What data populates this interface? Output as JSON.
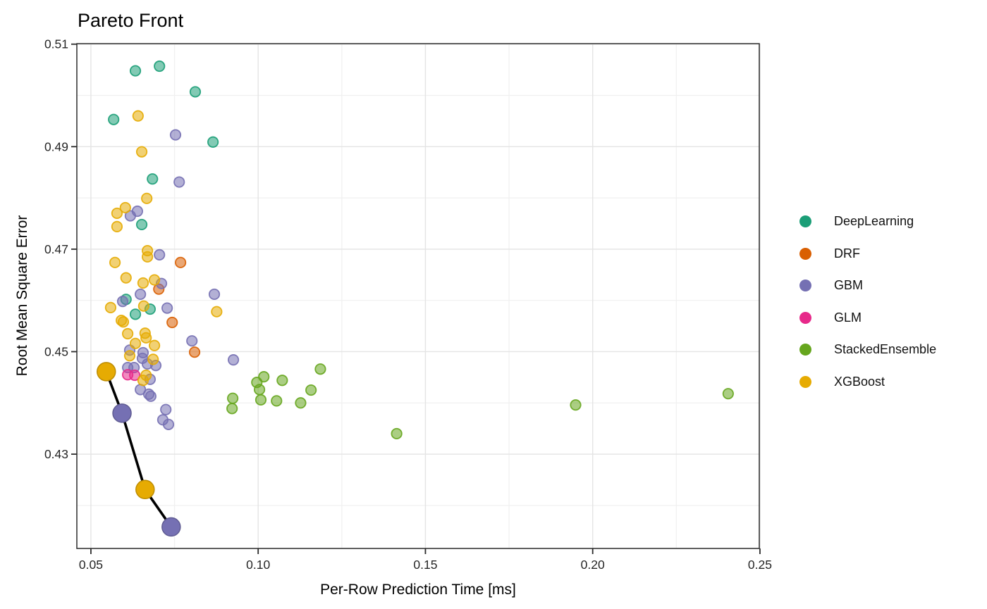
{
  "chart_data": {
    "type": "scatter",
    "title": "Pareto Front",
    "xlabel": "Per-Row Prediction Time [ms]",
    "ylabel": "Root Mean Square Error",
    "xlim": [
      0.0458,
      0.2498
    ],
    "ylim": [
      0.4116,
      0.5101
    ],
    "xticks": [
      0.05,
      0.1,
      0.15,
      0.2,
      0.25
    ],
    "xtick_labels": [
      "0.05",
      "0.10",
      "0.15",
      "0.20",
      "0.25"
    ],
    "yticks": [
      0.51,
      0.49,
      0.47,
      0.45,
      0.43
    ],
    "ytick_labels": [
      "0.51",
      "0.49",
      "0.47",
      "0.45",
      "0.43"
    ],
    "x_minor_ticks": [
      0.075,
      0.125,
      0.175,
      0.225
    ],
    "y_minor_ticks": [
      0.5,
      0.48,
      0.46,
      0.44,
      0.42
    ],
    "grid": true,
    "legend_position": "right-outside",
    "background": "#ffffff",
    "grid_major_color": "#e4e4e4",
    "grid_minor_color": "#f0f0f0",
    "panel_border_color": "#2b2b2b",
    "series": [
      {
        "name": "DeepLearning",
        "color": "#1b9e77",
        "points": [
          [
            0.0633,
            0.5048
          ],
          [
            0.0705,
            0.5057
          ],
          [
            0.0812,
            0.5007
          ],
          [
            0.0568,
            0.4953
          ],
          [
            0.0865,
            0.4909
          ],
          [
            0.0684,
            0.4837
          ],
          [
            0.0652,
            0.4748
          ],
          [
            0.0605,
            0.4602
          ],
          [
            0.0677,
            0.4583
          ],
          [
            0.0633,
            0.4573
          ]
        ]
      },
      {
        "name": "DRF",
        "color": "#d95f02",
        "points": [
          [
            0.0768,
            0.4674
          ],
          [
            0.0703,
            0.4622
          ],
          [
            0.0743,
            0.4557
          ],
          [
            0.081,
            0.4499
          ]
        ]
      },
      {
        "name": "GBM",
        "color": "#7570b3",
        "points": [
          [
            0.0753,
            0.4923
          ],
          [
            0.0764,
            0.4831
          ],
          [
            0.0639,
            0.4774
          ],
          [
            0.0618,
            0.4765
          ],
          [
            0.0705,
            0.4689
          ],
          [
            0.0711,
            0.4633
          ],
          [
            0.0648,
            0.4612
          ],
          [
            0.0869,
            0.4612
          ],
          [
            0.0595,
            0.4598
          ],
          [
            0.0728,
            0.4585
          ],
          [
            0.0802,
            0.4521
          ],
          [
            0.0616,
            0.4503
          ],
          [
            0.0656,
            0.4498
          ],
          [
            0.0654,
            0.4487
          ],
          [
            0.0669,
            0.4476
          ],
          [
            0.0694,
            0.4473
          ],
          [
            0.061,
            0.4469
          ],
          [
            0.0629,
            0.4469
          ],
          [
            0.0926,
            0.4484
          ],
          [
            0.0677,
            0.4446
          ],
          [
            0.0648,
            0.4426
          ],
          [
            0.0673,
            0.4417
          ],
          [
            0.0679,
            0.4413
          ],
          [
            0.0724,
            0.4387
          ],
          [
            0.0715,
            0.4367
          ],
          [
            0.0732,
            0.4358
          ]
        ]
      },
      {
        "name": "GLM",
        "color": "#e7298a",
        "points": [
          [
            0.061,
            0.4455
          ],
          [
            0.0631,
            0.4454
          ]
        ]
      },
      {
        "name": "StackedEnsemble",
        "color": "#66a61e",
        "points": [
          [
            0.1186,
            0.4466
          ],
          [
            0.1017,
            0.4451
          ],
          [
            0.1072,
            0.4444
          ],
          [
            0.0996,
            0.444
          ],
          [
            0.1004,
            0.4426
          ],
          [
            0.1158,
            0.4425
          ],
          [
            0.0924,
            0.4409
          ],
          [
            0.1008,
            0.4406
          ],
          [
            0.1055,
            0.4404
          ],
          [
            0.1127,
            0.44
          ],
          [
            0.0922,
            0.4389
          ],
          [
            0.1414,
            0.434
          ],
          [
            0.1949,
            0.4396
          ],
          [
            0.2405,
            0.4418
          ]
        ]
      },
      {
        "name": "XGBoost",
        "color": "#e6ab02",
        "points": [
          [
            0.0641,
            0.496
          ],
          [
            0.0652,
            0.489
          ],
          [
            0.0667,
            0.4799
          ],
          [
            0.0603,
            0.4781
          ],
          [
            0.0578,
            0.477
          ],
          [
            0.0578,
            0.4744
          ],
          [
            0.0669,
            0.4697
          ],
          [
            0.0669,
            0.4685
          ],
          [
            0.0572,
            0.4674
          ],
          [
            0.0605,
            0.4644
          ],
          [
            0.069,
            0.464
          ],
          [
            0.0656,
            0.4634
          ],
          [
            0.0559,
            0.4586
          ],
          [
            0.0658,
            0.4589
          ],
          [
            0.0876,
            0.4578
          ],
          [
            0.0591,
            0.4561
          ],
          [
            0.0597,
            0.4558
          ],
          [
            0.061,
            0.4535
          ],
          [
            0.0662,
            0.4536
          ],
          [
            0.0665,
            0.4527
          ],
          [
            0.0633,
            0.4516
          ],
          [
            0.069,
            0.4512
          ],
          [
            0.0616,
            0.4492
          ],
          [
            0.0686,
            0.4485
          ],
          [
            0.0665,
            0.4454
          ],
          [
            0.0656,
            0.4444
          ]
        ]
      }
    ],
    "pareto_front": {
      "line_color": "#000000",
      "points": [
        {
          "model": "XGBoost",
          "x": 0.0546,
          "y": 0.4461
        },
        {
          "model": "GBM",
          "x": 0.0593,
          "y": 0.438
        },
        {
          "model": "XGBoost",
          "x": 0.0662,
          "y": 0.4231
        },
        {
          "model": "GBM",
          "x": 0.074,
          "y": 0.4158
        }
      ]
    }
  }
}
